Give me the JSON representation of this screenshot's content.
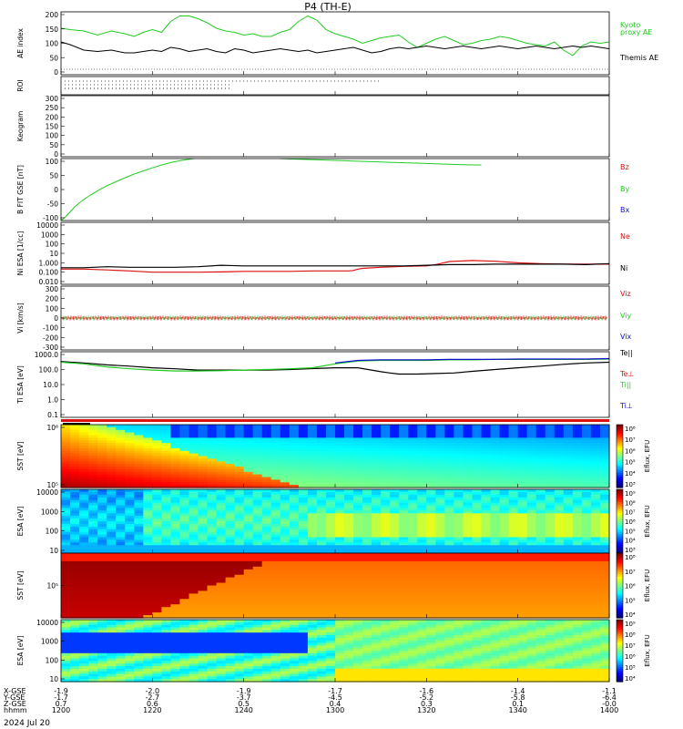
{
  "title": "P4  (TH-E)",
  "date_label": "2024 Jul 20",
  "colors": {
    "green": "#22cc22",
    "red": "#dd1111",
    "blue": "#1111cc",
    "black": "#000000"
  },
  "chart_data": [
    {
      "type": "line",
      "ylabel": "AE index",
      "ylim": [
        -20,
        210
      ],
      "yticks": [
        "200",
        "150",
        "100",
        "50",
        "0"
      ],
      "series": [
        {
          "name": "Kyoto proxy AE",
          "color": "#22cc22",
          "x": [
            0,
            2,
            5,
            8,
            11,
            14,
            16,
            18,
            20,
            22,
            24,
            26,
            28,
            30,
            32,
            34,
            36,
            38,
            40,
            42,
            44,
            46,
            48,
            50,
            52,
            54,
            56,
            58,
            60,
            62,
            64,
            66,
            68,
            70,
            72,
            74,
            76,
            78,
            80,
            82,
            84,
            86,
            88,
            90,
            92,
            94,
            96,
            98,
            100,
            102,
            104,
            106,
            108,
            110,
            112,
            114,
            116,
            118,
            120
          ],
          "y": [
            150,
            145,
            140,
            125,
            140,
            130,
            120,
            135,
            145,
            135,
            175,
            195,
            195,
            185,
            170,
            150,
            140,
            135,
            125,
            130,
            120,
            120,
            135,
            145,
            175,
            195,
            180,
            145,
            130,
            120,
            110,
            95,
            105,
            115,
            120,
            125,
            100,
            80,
            95,
            110,
            120,
            105,
            90,
            95,
            105,
            110,
            120,
            115,
            105,
            95,
            90,
            85,
            100,
            70,
            50,
            85,
            100,
            95,
            100
          ]
        },
        {
          "name": "Themis AE",
          "color": "#000000",
          "x": [
            0,
            2,
            5,
            8,
            11,
            14,
            16,
            18,
            20,
            22,
            24,
            26,
            28,
            30,
            32,
            34,
            36,
            38,
            40,
            42,
            44,
            46,
            48,
            50,
            52,
            54,
            56,
            58,
            60,
            62,
            64,
            66,
            68,
            70,
            72,
            74,
            76,
            78,
            80,
            82,
            84,
            86,
            88,
            90,
            92,
            94,
            96,
            98,
            100,
            102,
            104,
            106,
            108,
            110,
            112,
            114,
            116,
            118,
            120
          ],
          "y": [
            100,
            90,
            70,
            65,
            70,
            60,
            60,
            65,
            70,
            65,
            80,
            75,
            65,
            70,
            75,
            65,
            60,
            75,
            70,
            60,
            65,
            70,
            75,
            70,
            65,
            70,
            60,
            65,
            70,
            75,
            80,
            70,
            60,
            65,
            75,
            80,
            75,
            80,
            85,
            80,
            75,
            80,
            85,
            80,
            75,
            80,
            85,
            80,
            75,
            80,
            85,
            80,
            75,
            80,
            85,
            80,
            85,
            80,
            75
          ]
        }
      ]
    },
    {
      "type": "scatter",
      "ylabel": "ROI",
      "series": [
        {
          "name": "",
          "color": "#dd1111",
          "x_range": [
            0,
            70
          ],
          "y": 3
        },
        {
          "name": "",
          "color": "#dd1111",
          "x_range": [
            0,
            37
          ],
          "y": 2
        },
        {
          "name": "",
          "color": "#1111cc",
          "x_range": [
            0,
            37
          ],
          "y": 1
        }
      ]
    },
    {
      "type": "scatter",
      "ylabel": "Keogram",
      "ylim": [
        0,
        300
      ],
      "yticks": [
        "300",
        "250",
        "200",
        "150",
        "100",
        "50",
        "0"
      ]
    },
    {
      "type": "line",
      "ylabel": "B FIT GSE [nT]",
      "ylim": [
        -100,
        100
      ],
      "yticks": [
        "100",
        "50",
        "0",
        "-50",
        "-100"
      ],
      "series": [
        {
          "name": "Bz",
          "color": "#dd1111",
          "x": [],
          "y": []
        },
        {
          "name": "By",
          "color": "#22cc22",
          "x": [
            0,
            1,
            2,
            3,
            4,
            5,
            6,
            7,
            8,
            9,
            10,
            12,
            14,
            16,
            18,
            20,
            22,
            24,
            26,
            28,
            29,
            48,
            52,
            56,
            60,
            64,
            68,
            72,
            76,
            80,
            84,
            88,
            92
          ],
          "y": [
            -100,
            -88,
            -72,
            -56,
            -43,
            -32,
            -22,
            -13,
            -4,
            4,
            12,
            25,
            38,
            50,
            60,
            70,
            79,
            87,
            93,
            98,
            100,
            100,
            98,
            96,
            94,
            92,
            90,
            88,
            86,
            84,
            82,
            80,
            79
          ]
        },
        {
          "name": "Bx",
          "color": "#1111cc",
          "x": [],
          "y": []
        }
      ]
    },
    {
      "type": "line",
      "ylabel": "Ni ESA [1/cc]",
      "ylog": true,
      "ylim": [
        0.01,
        10000
      ],
      "yticks": [
        "10000",
        "1000",
        "100",
        "10",
        "1.000",
        "0.100",
        "0.010"
      ],
      "series": [
        {
          "name": "Ne",
          "color": "#dd1111",
          "x": [
            0,
            5,
            10,
            15,
            20,
            25,
            30,
            35,
            40,
            45,
            50,
            55,
            60,
            62,
            63,
            64,
            65,
            66,
            70,
            75,
            80,
            82,
            85,
            90,
            95,
            100,
            105,
            110,
            115,
            120
          ],
          "y": [
            0.3,
            0.3,
            0.25,
            0.2,
            0.15,
            0.15,
            0.15,
            0.16,
            0.18,
            0.18,
            0.18,
            0.2,
            0.2,
            0.2,
            0.2,
            0.22,
            0.3,
            0.35,
            0.45,
            0.55,
            0.6,
            0.8,
            1.6,
            2.0,
            1.7,
            1.2,
            1.0,
            0.9,
            0.9,
            0.9
          ]
        },
        {
          "name": "Ni",
          "color": "#000000",
          "x": [
            0,
            5,
            10,
            15,
            20,
            25,
            30,
            35,
            40,
            45,
            50,
            55,
            60,
            65,
            70,
            75,
            80,
            85,
            90,
            95,
            100,
            105,
            110,
            115,
            120
          ],
          "y": [
            0.4,
            0.4,
            0.5,
            0.45,
            0.45,
            0.45,
            0.5,
            0.7,
            0.6,
            0.6,
            0.6,
            0.6,
            0.6,
            0.6,
            0.6,
            0.6,
            0.7,
            0.8,
            0.8,
            0.9,
            0.9,
            0.9,
            0.9,
            0.8,
            1.0
          ]
        }
      ]
    },
    {
      "type": "line",
      "ylabel": "Vi [km/s]",
      "ylim": [
        -300,
        300
      ],
      "yticks": [
        "300",
        "200",
        "100",
        "0",
        "-100",
        "-200",
        "-300"
      ],
      "series": [
        {
          "name": "Viz",
          "color": "#dd1111",
          "x": [
            0,
            120
          ],
          "y": [
            0,
            0
          ]
        },
        {
          "name": "Viy",
          "color": "#22cc22",
          "x": [
            0,
            120
          ],
          "y": [
            5,
            5
          ]
        },
        {
          "name": "Vix",
          "color": "#1111cc",
          "x": [
            0,
            120
          ],
          "y": [
            -5,
            -5
          ]
        }
      ]
    },
    {
      "type": "line",
      "ylabel": "Ti ESA [eV]",
      "ylog": true,
      "ylim": [
        0.05,
        5000
      ],
      "yticks": [
        "1000.0",
        "100.0",
        "10.0",
        "1.0",
        "0.1"
      ],
      "series": [
        {
          "name": "Te||",
          "color": "#000000",
          "x": [
            0,
            5,
            10,
            15,
            20,
            25,
            30,
            35,
            40,
            45,
            50,
            55,
            60,
            65,
            70,
            72,
            74,
            78,
            82,
            86,
            90,
            95,
            100,
            105,
            110,
            115,
            120
          ],
          "y": [
            900,
            700,
            500,
            400,
            300,
            250,
            200,
            200,
            200,
            200,
            220,
            260,
            300,
            300,
            150,
            120,
            100,
            100,
            110,
            120,
            160,
            220,
            300,
            400,
            550,
            700,
            800
          ]
        },
        {
          "name": "Te⊥",
          "color": "#dd1111",
          "x": [],
          "y": []
        },
        {
          "name": "Ti||",
          "color": "#22cc22",
          "x": [
            0,
            5,
            10,
            15,
            20,
            25,
            30,
            35,
            40,
            45,
            50,
            55,
            60,
            65,
            70,
            75,
            80,
            85,
            90,
            95,
            100,
            105,
            110,
            115,
            120
          ],
          "y": [
            800,
            600,
            350,
            250,
            200,
            170,
            170,
            180,
            200,
            220,
            250,
            300,
            600,
            1000,
            1100,
            1100,
            1100,
            1200,
            1200,
            1300,
            1300,
            1300,
            1300,
            1300,
            1400
          ]
        },
        {
          "name": "Ti⊥",
          "color": "#1111cc",
          "x": [
            60,
            65,
            70,
            75,
            80,
            85,
            90,
            95,
            100,
            105,
            110,
            115,
            120
          ],
          "y": [
            700,
            1100,
            1200,
            1200,
            1200,
            1300,
            1300,
            1300,
            1400,
            1400,
            1400,
            1400,
            1500
          ]
        }
      ]
    },
    {
      "type": "heatmap",
      "ylabel": "SST [eV]",
      "ylabel2": "",
      "yticks": [
        "10⁶",
        "10⁵"
      ],
      "colorbar_ticks": [
        "10⁸",
        "10⁷",
        "10⁶",
        "10⁵",
        "10⁴",
        "10³"
      ],
      "colorbar_label": "Eflux, EFU"
    },
    {
      "type": "heatmap",
      "ylabel": "ESA [eV]",
      "yticks": [
        "10000",
        "1000",
        "100",
        "10"
      ],
      "colorbar_ticks": [
        "10⁹",
        "10⁸",
        "10⁷",
        "10⁶",
        "10⁵",
        "10⁴",
        "10³"
      ],
      "colorbar_label": "Eflux, EFU"
    },
    {
      "type": "heatmap",
      "ylabel": "SST [eV]",
      "yticks": [
        "10⁵"
      ],
      "colorbar_ticks": [
        "10⁸",
        "10⁷",
        "10⁶",
        "10⁵",
        "10⁴"
      ],
      "colorbar_label": "Eflux, EFU"
    },
    {
      "type": "heatmap",
      "ylabel": "ESA [eV]",
      "yticks": [
        "10000",
        "1000",
        "100",
        "10"
      ],
      "colorbar_ticks": [
        "10⁹",
        "10⁸",
        "10⁷",
        "10⁶",
        "10⁵",
        "10⁴"
      ],
      "colorbar_label": "Eflux, EFU"
    }
  ],
  "time_axis": {
    "row_labels": [
      "X-GSE",
      "Y-GSE",
      "Z-GSE",
      "hhmm"
    ],
    "columns": [
      {
        "x": 0,
        "vals": [
          "-1.9",
          "-1.7",
          "0.7",
          "1200"
        ]
      },
      {
        "x": 20,
        "vals": [
          "-2.0",
          "-2.7",
          "0.6",
          "1220"
        ]
      },
      {
        "x": 40,
        "vals": [
          "-1.9",
          "-3.7",
          "0.5",
          "1240"
        ]
      },
      {
        "x": 60,
        "vals": [
          "-1.7",
          "-4.5",
          "0.4",
          "1300"
        ]
      },
      {
        "x": 80,
        "vals": [
          "-1.6",
          "-5.2",
          "0.3",
          "1320"
        ]
      },
      {
        "x": 100,
        "vals": [
          "-1.4",
          "-5.8",
          "0.1",
          "1340"
        ]
      },
      {
        "x": 120,
        "vals": [
          "-1.1",
          "-6.4",
          "-0.0",
          "1400"
        ]
      }
    ]
  }
}
